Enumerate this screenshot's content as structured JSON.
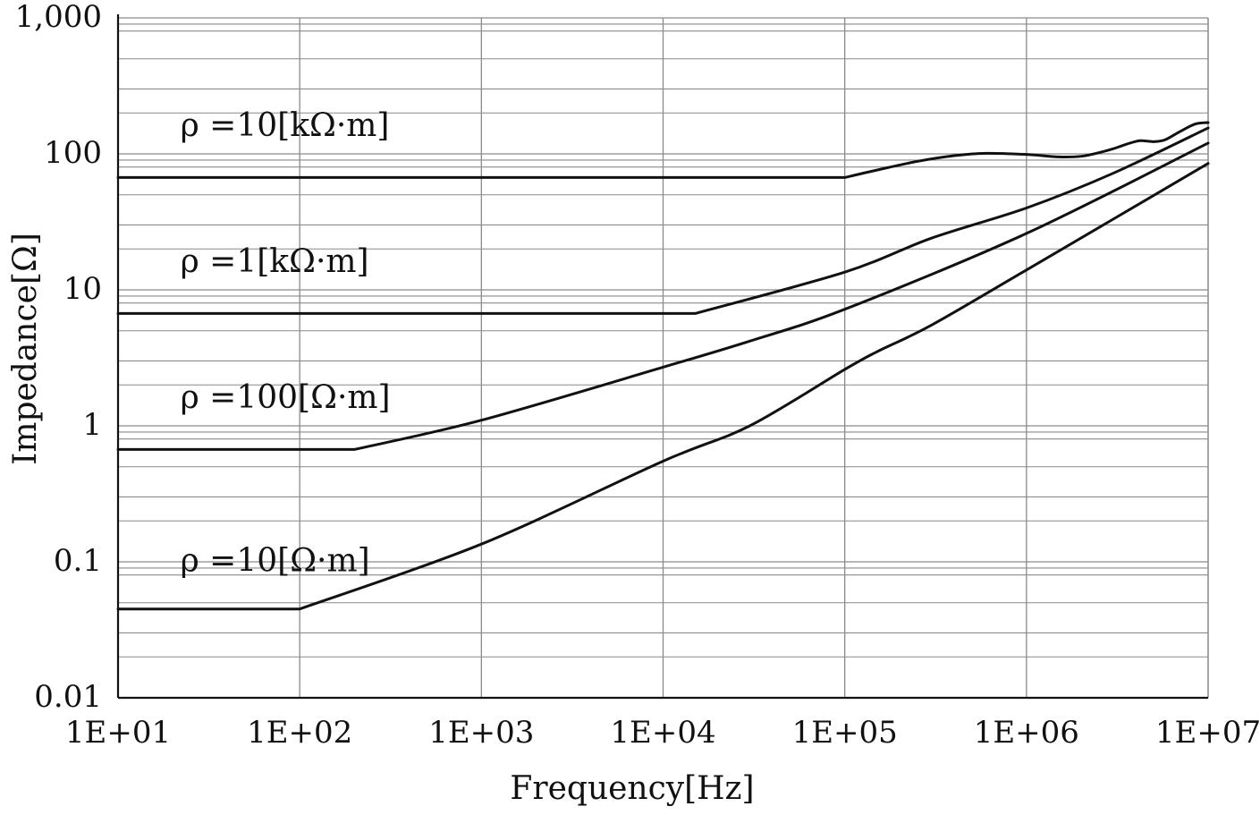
{
  "chart_data": {
    "type": "line",
    "xlabel": "Frequency[Hz]",
    "ylabel": "Impedance[Ω]",
    "x_scale": "log",
    "y_scale": "log",
    "xlim": [
      10,
      10000000
    ],
    "ylim": [
      0.01,
      1000
    ],
    "grid": true,
    "x_ticks": [
      {
        "value": 10,
        "label": "1E+01"
      },
      {
        "value": 100,
        "label": "1E+02"
      },
      {
        "value": 1000,
        "label": "1E+03"
      },
      {
        "value": 10000,
        "label": "1E+04"
      },
      {
        "value": 100000,
        "label": "1E+05"
      },
      {
        "value": 1000000,
        "label": "1E+06"
      },
      {
        "value": 10000000,
        "label": "1E+07"
      }
    ],
    "y_ticks": [
      {
        "value": 0.01,
        "label": "0.01"
      },
      {
        "value": 0.1,
        "label": "0.1"
      },
      {
        "value": 1,
        "label": "1"
      },
      {
        "value": 10,
        "label": "10"
      },
      {
        "value": 100,
        "label": "100"
      },
      {
        "value": 1000,
        "label": "1,000"
      }
    ],
    "series": [
      {
        "name": "ρ =10[kΩ·m]",
        "label_at": {
          "x": 22,
          "y": 135
        },
        "points": [
          [
            10,
            67
          ],
          [
            100000,
            67
          ],
          [
            150000,
            76
          ],
          [
            250000,
            88
          ],
          [
            400000,
            97
          ],
          [
            600000,
            101
          ],
          [
            1000000,
            99
          ],
          [
            1500000,
            95
          ],
          [
            2000000,
            96
          ],
          [
            2500000,
            102
          ],
          [
            3000000,
            109
          ],
          [
            3500000,
            117
          ],
          [
            4200000,
            125
          ],
          [
            5000000,
            123
          ],
          [
            5800000,
            127
          ],
          [
            7000000,
            146
          ],
          [
            8500000,
            166
          ],
          [
            10000000,
            170
          ]
        ]
      },
      {
        "name": "ρ =1[kΩ·m]",
        "label_at": {
          "x": 22,
          "y": 13.5
        },
        "points": [
          [
            10,
            6.7
          ],
          [
            15000,
            6.7
          ],
          [
            100000,
            13.5
          ],
          [
            300000,
            24
          ],
          [
            1000000,
            40
          ],
          [
            3000000,
            72
          ],
          [
            10000000,
            155
          ]
        ]
      },
      {
        "name": "ρ =100[Ω·m]",
        "label_at": {
          "x": 22,
          "y": 1.35
        },
        "points": [
          [
            10,
            0.67
          ],
          [
            200,
            0.67
          ],
          [
            1000,
            1.1
          ],
          [
            10000,
            2.7
          ],
          [
            30000,
            4.2
          ],
          [
            100000,
            7.2
          ],
          [
            1000000,
            26
          ],
          [
            10000000,
            120
          ]
        ]
      },
      {
        "name": "ρ =10[Ω·m]",
        "label_at": {
          "x": 22,
          "y": 0.085
        },
        "points": [
          [
            10,
            0.045
          ],
          [
            100,
            0.045
          ],
          [
            1000,
            0.135
          ],
          [
            10000,
            0.55
          ],
          [
            30000,
            1.0
          ],
          [
            100000,
            2.6
          ],
          [
            150000,
            3.5
          ],
          [
            300000,
            5.5
          ],
          [
            1000000,
            14
          ],
          [
            10000000,
            85
          ]
        ]
      }
    ]
  }
}
